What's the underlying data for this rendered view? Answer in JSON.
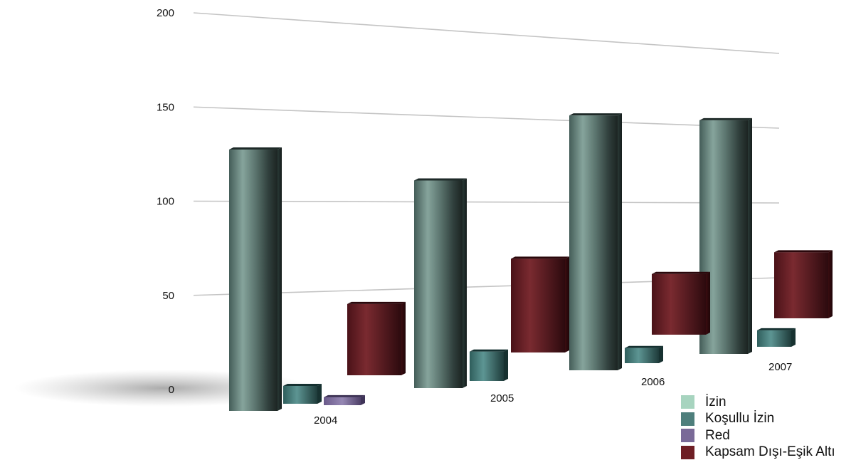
{
  "chart_data": {
    "type": "bar",
    "categories": [
      "2004",
      "2005",
      "2006",
      "2007"
    ],
    "series": [
      {
        "name": "İzin",
        "color": "#a7d4bf",
        "values": [
          132,
          113,
          168,
          170
        ]
      },
      {
        "name": "Koşullu İzin",
        "color": "#4e7f7c",
        "values": [
          9,
          16,
          10,
          12
        ]
      },
      {
        "name": "Red",
        "color": "#7a6a98",
        "values": [
          4,
          0,
          0,
          0
        ]
      },
      {
        "name": "Kapsam Dışı-Eşik Altı",
        "color": "#6e1e24",
        "values": [
          36,
          51,
          40,
          48
        ]
      }
    ],
    "y_ticks": [
      "0",
      "50",
      "100",
      "150",
      "200"
    ],
    "ylim": [
      0,
      200
    ],
    "grid": true,
    "legend_position": "bottom-right",
    "style": "3d-perspective"
  }
}
